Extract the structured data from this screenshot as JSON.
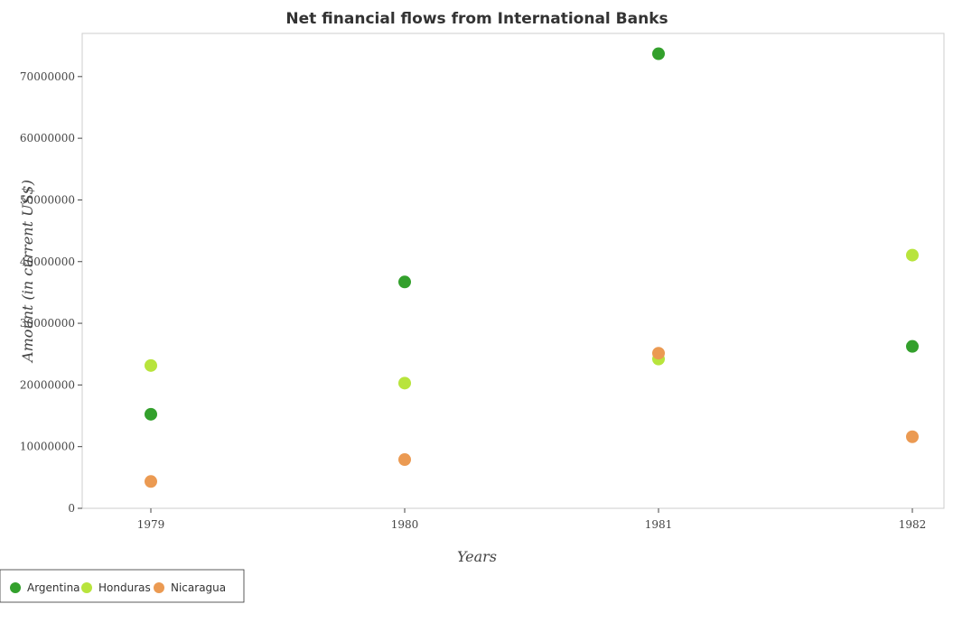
{
  "chart_data": {
    "type": "scatter",
    "title": "Net financial flows from International Banks",
    "xlabel": "Years",
    "ylabel": "Amount (in current US$)",
    "categories": [
      "1979",
      "1980",
      "1981",
      "1982"
    ],
    "ylim": [
      0,
      77000000
    ],
    "yticks": [
      0,
      10000000,
      20000000,
      30000000,
      40000000,
      50000000,
      60000000,
      70000000
    ],
    "ytick_labels": [
      "0",
      "10000000",
      "20000000",
      "30000000",
      "40000000",
      "50000000",
      "60000000",
      "70000000"
    ],
    "grid": false,
    "legend_position": "bottom-left",
    "series": [
      {
        "name": "Argentina",
        "color": "#33a02c",
        "values": [
          15250000,
          36700000,
          73700000,
          26250000
        ]
      },
      {
        "name": "Honduras",
        "color": "#b8e43c",
        "values": [
          23150000,
          20300000,
          24200000,
          41050000
        ]
      },
      {
        "name": "Nicaragua",
        "color": "#eb9a52",
        "values": [
          4350000,
          7900000,
          25150000,
          11600000
        ]
      }
    ]
  }
}
